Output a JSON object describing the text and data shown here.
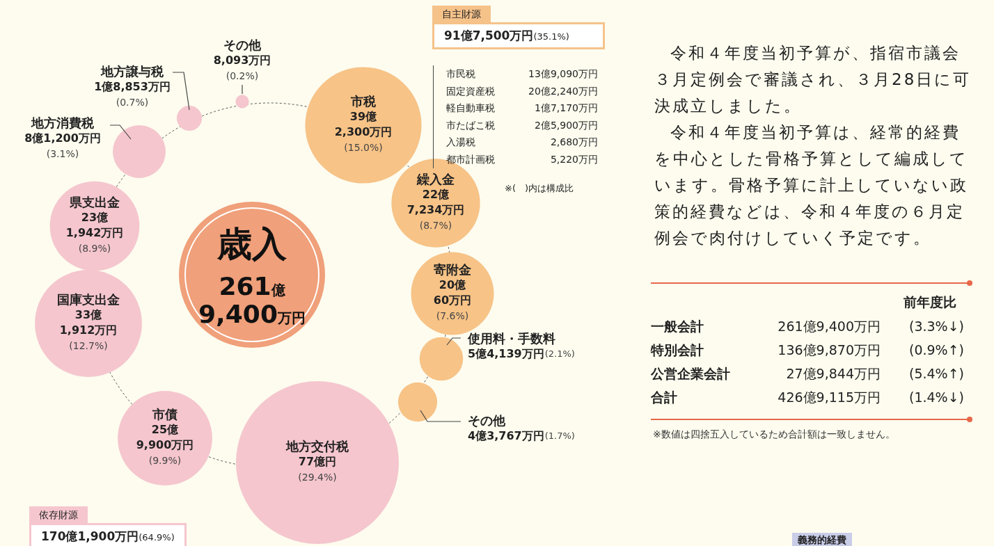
{
  "chart_data": {
    "type": "other",
    "title": "歳入",
    "subtitle": "261億\n9,400万円",
    "categories": [
      "その他",
      "市税",
      "繰入金",
      "寄附金",
      "使用料・手数料",
      "その他",
      "地方交付税",
      "市債",
      "国庫支出金",
      "県支出金",
      "地方消費税",
      "地方譲与税"
    ],
    "values": [
      0.2,
      15.0,
      8.7,
      7.6,
      2.1,
      1.7,
      29.4,
      9.9,
      12.7,
      8.9,
      3.1,
      0.7
    ],
    "value_labels": [
      "8,093万円\n(0.2%)",
      "39億\n2,300万円\n(15.0%)",
      "22億\n7,234万円\n(8.7%)",
      "20億\n60万円\n(7.6%)",
      "5億4,139万円(2.1%)",
      "4億3,767万円(1.7%)",
      "77億円\n(29.4%)",
      "25億\n9,900万円\n(9.9%)",
      "33億\n1,912万円\n(12.7%)",
      "23億\n1,942万円\n(8.9%)",
      "8億1,200万円\n(3.1%)",
      "1億8,853万円\n(0.7%)"
    ],
    "colors": [
      "#f5c6ce",
      "#f7c387",
      "#f7c387",
      "#f7c387",
      "#f7c387",
      "#f7c387",
      "#f5c6ce",
      "#f5c6ce",
      "#f5c6ce",
      "#f5c6ce",
      "#f5c6ce",
      "#f5c6ce"
    ],
    "annotations": [
      "自主財源",
      "91億7,500万円(35.1%)",
      "依存財源",
      "170億1,900万円(64.9%)",
      "市民税 13億9,090万円",
      "固定資産税 20億2,240万円",
      "軽自動車税 1億7,170万円",
      "市たばこ税 2億5,900万円",
      "入湯税 2,680万円",
      "都市計画税 5,220万円",
      "※(　)内は構成比",
      "令和４年度当初予算が、指宿市議会３月定例会で審議され、３月28日に可決成立しました。",
      "令和４年度当初予算は、経常的経費を中心とした骨格予算として編成しています。骨格予算に計上していない政策的経費などは、令和４年度の６月定例会で肉付けしていく予定です。",
      "前年度比",
      "一般会計 261億9,400万円 (3.3%↓)",
      "特別会計 136億9,870万円 (0.9%↑)",
      "公営企業会計 27億9,844万円 (5.4%↑)",
      "合計 426億9,115万円 (1.4%↓)",
      "※数値は四捨五入しているため合計額は一致しません。",
      "義務的経費"
    ]
  }
}
